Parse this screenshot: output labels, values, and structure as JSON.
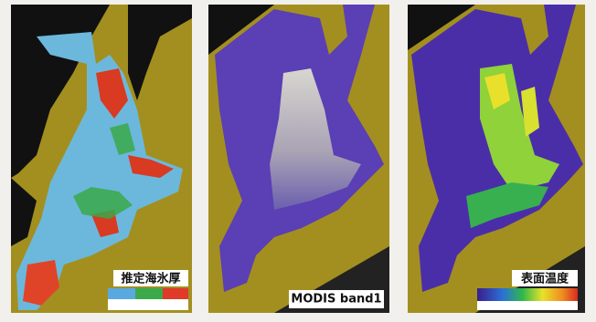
{
  "panels": [
    {
      "label": "推定海氷厚"
    },
    {
      "label": "MODIS band1"
    },
    {
      "label": "表面温度"
    }
  ]
}
